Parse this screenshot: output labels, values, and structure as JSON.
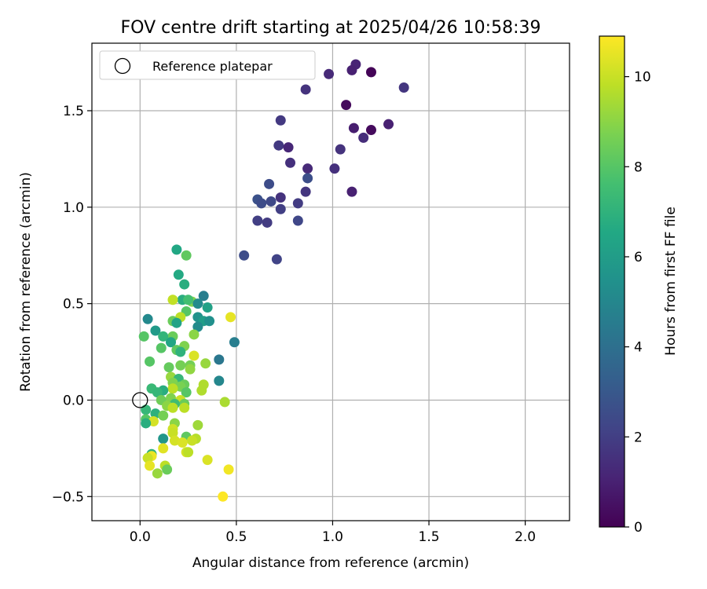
{
  "chart_data": {
    "type": "scatter",
    "title": "FOV centre drift starting at 2025/04/26 10:58:39",
    "xlabel": "Angular distance from reference (arcmin)",
    "ylabel": "Rotation from reference (arcmin)",
    "xlim": [
      -0.25,
      2.23
    ],
    "ylim": [
      -0.625,
      1.85
    ],
    "x_ticks": [
      0.0,
      0.5,
      1.0,
      1.5,
      2.0
    ],
    "x_tick_labels": [
      "0.0",
      "0.5",
      "1.0",
      "1.5",
      "2.0"
    ],
    "y_ticks": [
      -0.5,
      0.0,
      0.5,
      1.0,
      1.5
    ],
    "y_tick_labels": [
      "−0.5",
      "0.0",
      "0.5",
      "1.0",
      "1.5"
    ],
    "grid": true,
    "legend_position": "upper-left",
    "legend_label": "Reference platepar",
    "reference_point": [
      0.0,
      0.0
    ],
    "colorbar": {
      "label": "Hours from first FF file",
      "range": [
        0,
        10.9
      ],
      "ticks": [
        0,
        2,
        4,
        6,
        8,
        10
      ],
      "tick_labels": [
        "0",
        "2",
        "4",
        "6",
        "8",
        "10"
      ],
      "colormap": "viridis"
    },
    "points": [
      [
        1.2,
        1.7,
        0.1
      ],
      [
        1.12,
        1.74,
        1.1
      ],
      [
        1.1,
        1.71,
        1.0
      ],
      [
        0.98,
        1.69,
        1.3
      ],
      [
        1.37,
        1.62,
        1.7
      ],
      [
        0.86,
        1.61,
        1.6
      ],
      [
        1.07,
        1.53,
        0.3
      ],
      [
        0.73,
        1.45,
        1.8
      ],
      [
        1.29,
        1.43,
        1.0
      ],
      [
        1.11,
        1.41,
        0.9
      ],
      [
        1.2,
        1.4,
        0.3
      ],
      [
        1.16,
        1.36,
        1.4
      ],
      [
        0.72,
        1.32,
        1.8
      ],
      [
        0.77,
        1.31,
        1.2
      ],
      [
        1.04,
        1.3,
        1.6
      ],
      [
        0.78,
        1.23,
        1.5
      ],
      [
        0.87,
        1.2,
        1.3
      ],
      [
        1.01,
        1.2,
        1.5
      ],
      [
        0.87,
        1.15,
        2.6
      ],
      [
        0.67,
        1.12,
        2.5
      ],
      [
        1.1,
        1.08,
        1.0
      ],
      [
        0.86,
        1.08,
        1.7
      ],
      [
        0.73,
        1.05,
        1.6
      ],
      [
        0.61,
        1.04,
        2.7
      ],
      [
        0.68,
        1.03,
        2.4
      ],
      [
        0.63,
        1.02,
        2.5
      ],
      [
        0.82,
        1.02,
        1.9
      ],
      [
        0.73,
        0.99,
        2.0
      ],
      [
        0.61,
        0.93,
        2.0
      ],
      [
        0.66,
        0.92,
        1.9
      ],
      [
        0.82,
        0.93,
        2.3
      ],
      [
        0.54,
        0.75,
        2.5
      ],
      [
        0.71,
        0.73,
        2.2
      ],
      [
        0.19,
        0.78,
        6.5
      ],
      [
        0.24,
        0.75,
        8.2
      ],
      [
        0.2,
        0.65,
        6.6
      ],
      [
        0.23,
        0.6,
        6.8
      ],
      [
        0.33,
        0.54,
        4.6
      ],
      [
        0.22,
        0.52,
        6.8
      ],
      [
        0.27,
        0.51,
        8.8
      ],
      [
        0.17,
        0.52,
        9.9
      ],
      [
        0.25,
        0.52,
        7.6
      ],
      [
        0.3,
        0.5,
        5.2
      ],
      [
        0.35,
        0.48,
        6.2
      ],
      [
        0.24,
        0.46,
        8.0
      ],
      [
        0.47,
        0.43,
        10.5
      ],
      [
        0.21,
        0.43,
        9.8
      ],
      [
        0.3,
        0.43,
        5.5
      ],
      [
        0.17,
        0.41,
        8.4
      ],
      [
        0.33,
        0.41,
        6.0
      ],
      [
        0.36,
        0.41,
        5.4
      ],
      [
        0.04,
        0.42,
        5.1
      ],
      [
        0.19,
        0.4,
        6.3
      ],
      [
        0.3,
        0.38,
        5.2
      ],
      [
        0.08,
        0.36,
        5.9
      ],
      [
        0.02,
        0.33,
        8.0
      ],
      [
        0.17,
        0.33,
        8.4
      ],
      [
        0.12,
        0.33,
        7.1
      ],
      [
        0.28,
        0.34,
        9.0
      ],
      [
        0.49,
        0.3,
        4.6
      ],
      [
        0.16,
        0.3,
        6.4
      ],
      [
        0.11,
        0.27,
        8.0
      ],
      [
        0.19,
        0.26,
        8.2
      ],
      [
        0.23,
        0.28,
        8.8
      ],
      [
        0.21,
        0.25,
        7.0
      ],
      [
        0.28,
        0.23,
        10.3
      ],
      [
        0.05,
        0.2,
        8.0
      ],
      [
        0.41,
        0.21,
        4.3
      ],
      [
        0.34,
        0.19,
        9.2
      ],
      [
        0.26,
        0.18,
        8.6
      ],
      [
        0.15,
        0.17,
        8.3
      ],
      [
        0.21,
        0.18,
        8.6
      ],
      [
        0.26,
        0.16,
        9.1
      ],
      [
        0.16,
        0.12,
        9.2
      ],
      [
        0.2,
        0.11,
        7.2
      ],
      [
        0.41,
        0.1,
        5.0
      ],
      [
        0.17,
        0.09,
        8.8
      ],
      [
        0.23,
        0.08,
        8.4
      ],
      [
        0.33,
        0.08,
        9.6
      ],
      [
        0.21,
        0.07,
        8.7
      ],
      [
        0.06,
        0.06,
        7.3
      ],
      [
        0.17,
        0.06,
        9.8
      ],
      [
        0.12,
        0.05,
        6.8
      ],
      [
        0.32,
        0.05,
        9.6
      ],
      [
        0.09,
        0.04,
        7.2
      ],
      [
        0.24,
        0.04,
        8.0
      ],
      [
        0.16,
        0.01,
        8.8
      ],
      [
        0.11,
        0.0,
        8.5
      ],
      [
        0.21,
        0.0,
        10.0
      ],
      [
        0.44,
        -0.01,
        9.5
      ],
      [
        0.23,
        -0.02,
        8.4
      ],
      [
        0.18,
        -0.02,
        7.5
      ],
      [
        0.14,
        -0.03,
        9.0
      ],
      [
        0.23,
        -0.04,
        9.8
      ],
      [
        0.17,
        -0.04,
        9.8
      ],
      [
        0.03,
        -0.05,
        7.2
      ],
      [
        0.08,
        -0.07,
        6.9
      ],
      [
        0.12,
        -0.08,
        8.6
      ],
      [
        0.03,
        -0.1,
        8.0
      ],
      [
        0.07,
        -0.11,
        10.2
      ],
      [
        0.03,
        -0.12,
        6.8
      ],
      [
        0.18,
        -0.12,
        9.0
      ],
      [
        0.3,
        -0.13,
        9.3
      ],
      [
        0.17,
        -0.15,
        10.1
      ],
      [
        0.17,
        -0.17,
        10.0
      ],
      [
        0.12,
        -0.2,
        5.7
      ],
      [
        0.24,
        -0.19,
        8.2
      ],
      [
        0.29,
        -0.2,
        9.7
      ],
      [
        0.18,
        -0.21,
        10.2
      ],
      [
        0.27,
        -0.21,
        10.0
      ],
      [
        0.22,
        -0.22,
        10.3
      ],
      [
        0.12,
        -0.25,
        10.4
      ],
      [
        0.24,
        -0.27,
        10.2
      ],
      [
        0.25,
        -0.27,
        9.8
      ],
      [
        0.06,
        -0.28,
        7.0
      ],
      [
        0.06,
        -0.29,
        10.6
      ],
      [
        0.04,
        -0.3,
        10.0
      ],
      [
        0.35,
        -0.31,
        10.3
      ],
      [
        0.05,
        -0.34,
        10.5
      ],
      [
        0.13,
        -0.34,
        9.8
      ],
      [
        0.14,
        -0.36,
        8.4
      ],
      [
        0.46,
        -0.36,
        10.7
      ],
      [
        0.09,
        -0.38,
        9.2
      ],
      [
        0.43,
        -0.5,
        10.9
      ]
    ]
  }
}
